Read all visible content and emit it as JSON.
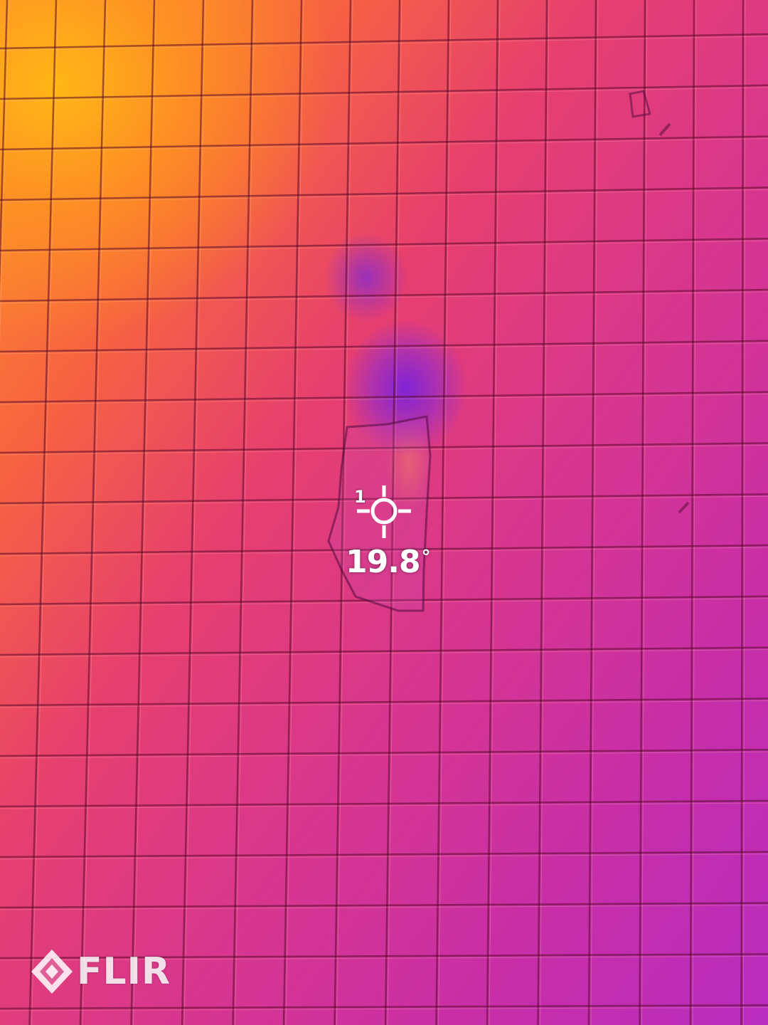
{
  "spot_meter": {
    "index": "1",
    "temperature": "19.8",
    "unit_symbol": "°"
  },
  "logo": {
    "text": "FLIR"
  },
  "palette": {
    "hot": "#ffb21a",
    "warm": "#f7643f",
    "mid": "#e63f6f",
    "cool": "#c92fa5",
    "coldest": "#7a2ee0",
    "overlay_text": "#ffffff"
  },
  "icons": {
    "spot_meter": "crosshair-icon",
    "logo": "flir-logo-mark"
  }
}
